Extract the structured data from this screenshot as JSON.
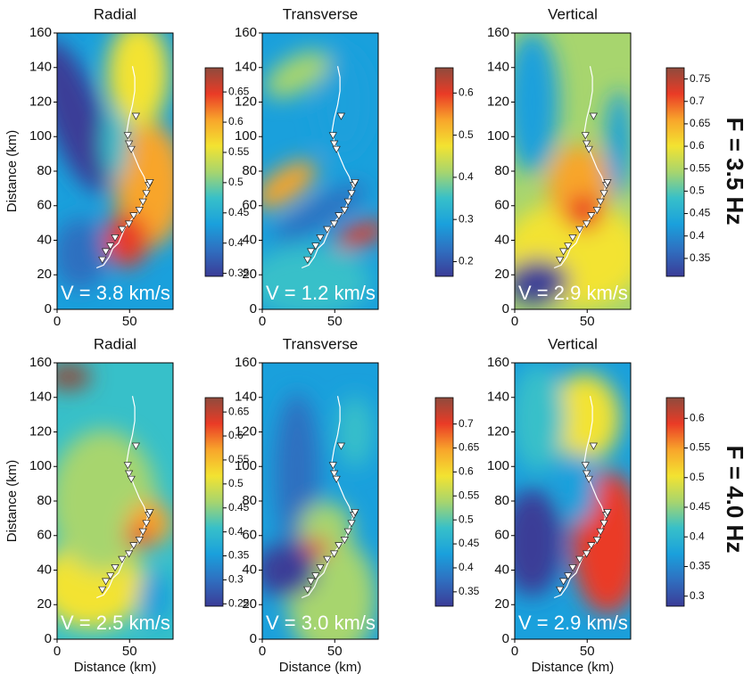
{
  "row_labels": [
    "F = 3.5 Hz",
    "F = 4.0 Hz"
  ],
  "colormap": [
    "#3b3c97",
    "#2f6fc0",
    "#1aa0dc",
    "#37c0c9",
    "#a7d56e",
    "#f3e331",
    "#f8a52b",
    "#ea3b26",
    "#8f4b3d"
  ],
  "chart_data": [
    {
      "type": "heatmap",
      "title": "Radial",
      "ylabel": "Distance (km)",
      "annotation": "V = 3.8 km/s",
      "xlim": [
        0,
        80
      ],
      "xticks": [
        0,
        50
      ],
      "ylim": [
        0,
        160
      ],
      "yticks": [
        0,
        20,
        40,
        60,
        80,
        100,
        120,
        140,
        160
      ],
      "clim": [
        0.345,
        0.69
      ],
      "cticks": [
        0.35,
        0.4,
        0.45,
        0.5,
        0.55,
        0.6,
        0.65
      ]
    },
    {
      "type": "heatmap",
      "title": "Transverse",
      "annotation": "V = 1.2 km/s",
      "xlim": [
        0,
        80
      ],
      "xticks": [
        0,
        50
      ],
      "ylim": [
        0,
        160
      ],
      "yticks": [
        0,
        20,
        40,
        60,
        80,
        100,
        120,
        140,
        160
      ],
      "clim": [
        0.165,
        0.66
      ],
      "cticks": [
        0.2,
        0.3,
        0.4,
        0.5,
        0.6
      ]
    },
    {
      "type": "heatmap",
      "title": "Vertical",
      "annotation": "V = 2.9 km/s",
      "xlim": [
        0,
        80
      ],
      "xticks": [
        0,
        50
      ],
      "ylim": [
        0,
        160
      ],
      "yticks": [
        0,
        20,
        40,
        60,
        80,
        100,
        120,
        140,
        160
      ],
      "clim": [
        0.31,
        0.775
      ],
      "cticks": [
        0.35,
        0.4,
        0.45,
        0.5,
        0.55,
        0.6,
        0.65,
        0.7,
        0.75
      ]
    },
    {
      "type": "heatmap",
      "title": "Radial",
      "ylabel": "Distance (km)",
      "xlabel": "Distance (km)",
      "annotation": "V = 2.5 km/s",
      "xlim": [
        0,
        80
      ],
      "xticks": [
        0,
        50
      ],
      "ylim": [
        0,
        160
      ],
      "yticks": [
        0,
        20,
        40,
        60,
        80,
        100,
        120,
        140,
        160
      ],
      "clim": [
        0.245,
        0.68
      ],
      "cticks": [
        0.25,
        0.3,
        0.35,
        0.4,
        0.45,
        0.5,
        0.55,
        0.6,
        0.65
      ]
    },
    {
      "type": "heatmap",
      "title": "Transverse",
      "xlabel": "Distance (km)",
      "annotation": "V = 3.0 km/s",
      "xlim": [
        0,
        80
      ],
      "xticks": [
        0,
        50
      ],
      "ylim": [
        0,
        160
      ],
      "yticks": [
        0,
        20,
        40,
        60,
        80,
        100,
        120,
        140,
        160
      ],
      "clim": [
        0.32,
        0.755
      ],
      "cticks": [
        0.35,
        0.4,
        0.45,
        0.5,
        0.55,
        0.6,
        0.65,
        0.7
      ]
    },
    {
      "type": "heatmap",
      "title": "Vertical",
      "xlabel": "Distance (km)",
      "annotation": "V = 2.9 km/s",
      "xlim": [
        0,
        80
      ],
      "xticks": [
        0,
        50
      ],
      "ylim": [
        0,
        160
      ],
      "yticks": [
        0,
        20,
        40,
        60,
        80,
        100,
        120,
        140,
        160
      ],
      "clim": [
        0.283,
        0.635
      ],
      "cticks": [
        0.3,
        0.35,
        0.4,
        0.45,
        0.5,
        0.55,
        0.6
      ]
    }
  ]
}
